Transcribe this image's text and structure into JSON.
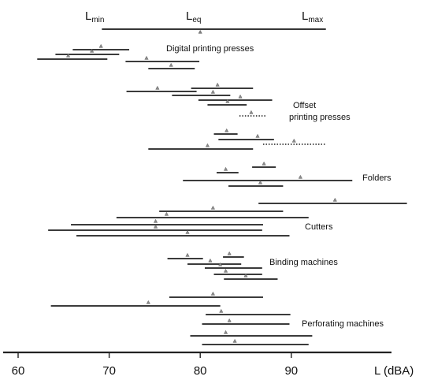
{
  "chart_data": {
    "type": "interval",
    "xlabel": "L (dBA)",
    "xlim": [
      56.5,
      105
    ],
    "ticks": [
      60,
      70,
      80,
      90
    ],
    "tick_labels": [
      "60",
      "70",
      "80",
      "90"
    ],
    "legend": {
      "lmin_base": "L",
      "lmin_sub": "min",
      "leq_base": "L",
      "leq_sub": "eq",
      "lmax_base": "L",
      "lmax_sub": "max",
      "min": 69.2,
      "eq": 80.0,
      "max": 93.8
    },
    "groups": [
      {
        "label": "Digital printing presses",
        "label_lines": [
          "Digital printing presses"
        ],
        "rows": [
          {
            "y": 63,
            "min": 66.0,
            "eq": 69.1,
            "max": 72.2
          },
          {
            "y": 69,
            "min": 64.1,
            "eq": 68.1,
            "max": 71.1
          },
          {
            "y": 75,
            "min": 62.1,
            "eq": 65.5,
            "max": 69.8
          },
          {
            "y": 78,
            "min": 71.8,
            "eq": 74.1,
            "max": 79.9
          },
          {
            "y": 87,
            "min": 74.3,
            "eq": 76.8,
            "max": 79.4
          }
        ]
      },
      {
        "label": "Offset printing presses",
        "label_lines": [
          "Offset",
          "printing presses"
        ],
        "rows": [
          {
            "y": 112,
            "min": 79.0,
            "eq": 81.9,
            "max": 85.8
          },
          {
            "y": 116,
            "min": 71.9,
            "eq": 75.3,
            "max": 79.6
          },
          {
            "y": 121,
            "min": 76.9,
            "eq": 81.4,
            "max": 83.3
          },
          {
            "y": 127,
            "min": 79.8,
            "eq": 84.4,
            "max": 87.9
          },
          {
            "y": 133,
            "min": 80.8,
            "eq": 83.0,
            "max": 85.1
          },
          {
            "y": 147,
            "min": 84.3,
            "eq": 85.6,
            "max": 87.3,
            "dotted": true
          },
          {
            "y": 170,
            "min": 81.5,
            "eq": 82.9,
            "max": 84.1
          },
          {
            "y": 177,
            "min": 82.0,
            "eq": 86.3,
            "max": 88.1
          },
          {
            "y": 183,
            "min": 86.9,
            "eq": 90.3,
            "max": 93.7,
            "dotted": true
          },
          {
            "y": 189,
            "min": 74.3,
            "eq": 80.8,
            "max": 85.8
          }
        ]
      },
      {
        "label": "Folders",
        "label_lines": [
          "Folders"
        ],
        "rows": [
          {
            "y": 212,
            "min": 85.7,
            "eq": 87.0,
            "max": 88.3
          },
          {
            "y": 219,
            "min": 81.8,
            "eq": 82.8,
            "max": 84.2
          },
          {
            "y": 229,
            "min": 78.1,
            "eq": 91.0,
            "max": 96.7
          },
          {
            "y": 236,
            "min": 83.1,
            "eq": 86.6,
            "max": 89.1
          },
          {
            "y": 258,
            "min": 86.4,
            "eq": 94.8,
            "max": 102.7
          }
        ]
      },
      {
        "label": "Cutters",
        "label_lines": [
          "Cutters"
        ],
        "rows": [
          {
            "y": 268,
            "min": 75.5,
            "eq": 81.4,
            "max": 89.1
          },
          {
            "y": 276,
            "min": 70.8,
            "eq": 76.3,
            "max": 91.9
          },
          {
            "y": 285,
            "min": 65.8,
            "eq": 75.1,
            "max": 86.9
          },
          {
            "y": 292,
            "min": 63.3,
            "eq": 75.1,
            "max": 86.8
          },
          {
            "y": 299,
            "min": 66.4,
            "eq": 78.6,
            "max": 89.8
          }
        ]
      },
      {
        "label": "Binding machines",
        "label_lines": [
          "Binding machines"
        ],
        "rows": [
          {
            "y": 326,
            "min": 82.5,
            "eq": 83.2,
            "max": 84.8
          },
          {
            "y": 328,
            "min": 76.4,
            "eq": 78.6,
            "max": 80.3
          },
          {
            "y": 335,
            "min": 78.6,
            "eq": 81.1,
            "max": 84.5
          },
          {
            "y": 340,
            "min": 80.5,
            "eq": 82.2,
            "max": 86.8
          },
          {
            "y": 348,
            "min": 81.5,
            "eq": 82.8,
            "max": 86.8
          },
          {
            "y": 354,
            "min": 82.6,
            "eq": 85.0,
            "max": 88.5
          }
        ]
      },
      {
        "label": "Perforating machines",
        "label_lines": [
          "Perforating machines"
        ],
        "rows": [
          {
            "y": 377,
            "min": 76.6,
            "eq": 81.4,
            "max": 86.9
          },
          {
            "y": 388,
            "min": 63.6,
            "eq": 74.3,
            "max": 82.2
          },
          {
            "y": 399,
            "min": 80.6,
            "eq": 82.3,
            "max": 89.9
          },
          {
            "y": 411,
            "min": 80.2,
            "eq": 83.2,
            "max": 89.8
          },
          {
            "y": 426,
            "min": 78.9,
            "eq": 82.8,
            "max": 92.3
          },
          {
            "y": 437,
            "min": 80.2,
            "eq": 83.8,
            "max": 91.9
          }
        ]
      }
    ]
  }
}
